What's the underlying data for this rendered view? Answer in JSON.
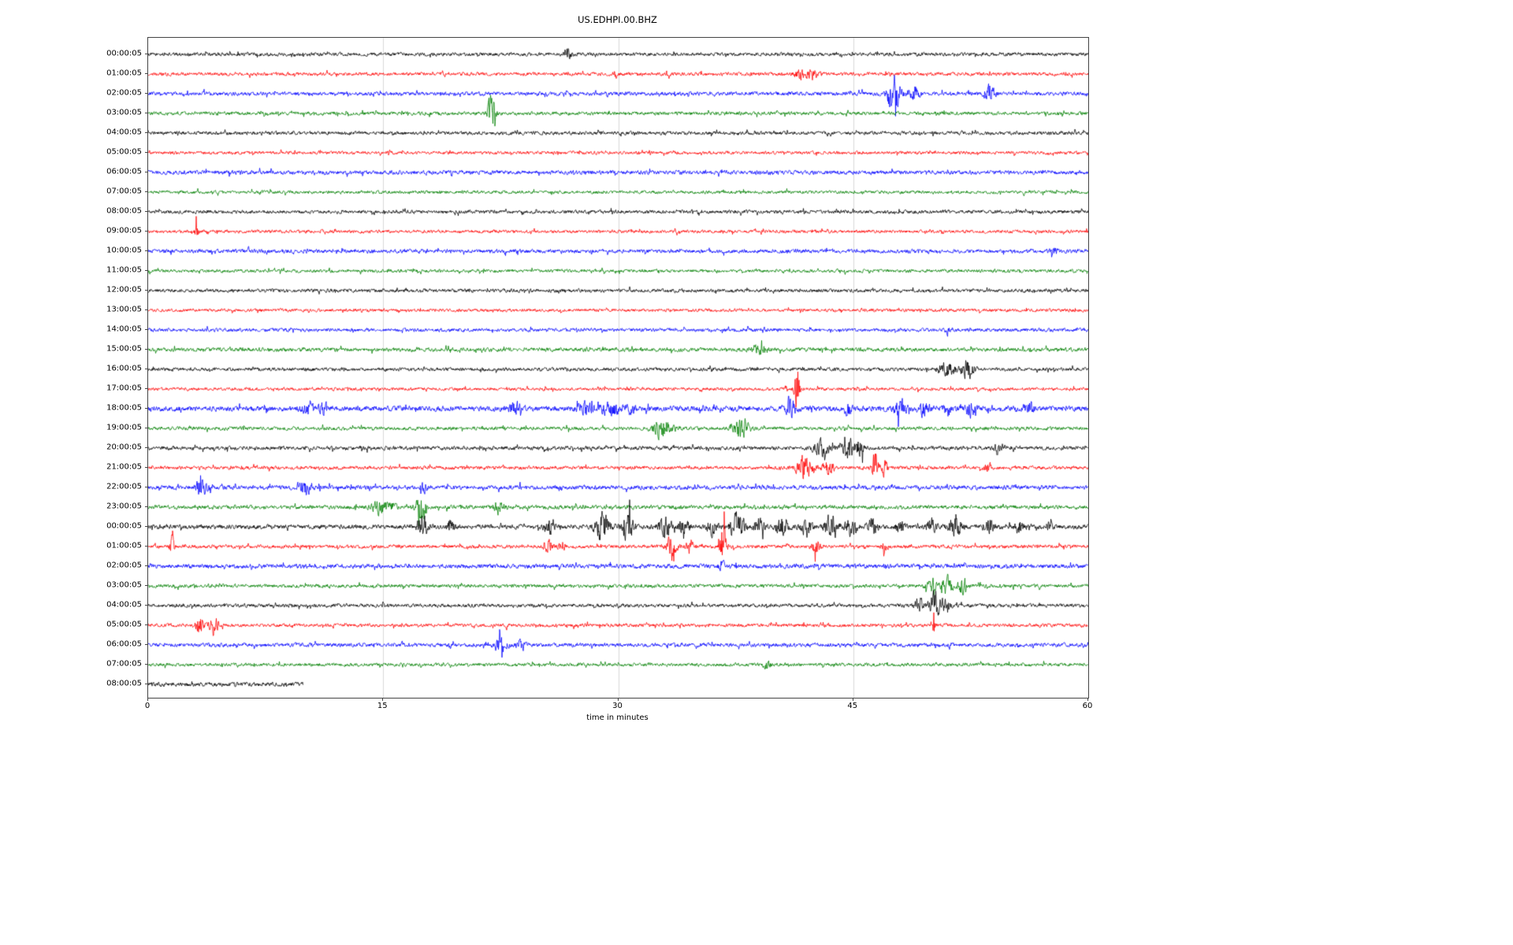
{
  "chart_data": {
    "type": "line",
    "title": "US.EDHPI.00.BHZ",
    "xlabel": "time in minutes",
    "xlim": [
      0,
      60
    ],
    "x_ticks": [
      0,
      15,
      30,
      45,
      60
    ],
    "grid_x": [
      15,
      30,
      45
    ],
    "grid_color": "#d9d9d9",
    "legend": "none",
    "description": "Helicorder day-plot: one horizontal trace per hour, 60 minutes per line, colors cycle black/red/blue/green, event bursts marked per row at minute positions (t) with relative amplitude (amp) and duration in minutes (dur).",
    "color_cycle": [
      "#000000",
      "#ff0000",
      "#0000ff",
      "#008000"
    ],
    "rows": [
      {
        "label": "00:00:05",
        "color": "#000000",
        "noise": 1.0,
        "coverage": 1,
        "events": [
          {
            "t": 26.8,
            "dur": 0.4,
            "amp": 3
          }
        ]
      },
      {
        "label": "01:00:05",
        "color": "#ff0000",
        "noise": 1.0,
        "coverage": 1,
        "events": [
          {
            "t": 29.8,
            "dur": 0.2,
            "amp": 2.5
          },
          {
            "t": 33.2,
            "dur": 0.2,
            "amp": 2
          },
          {
            "t": 41.6,
            "dur": 0.5,
            "amp": 3
          },
          {
            "t": 42.4,
            "dur": 0.5,
            "amp": 3.5
          }
        ]
      },
      {
        "label": "02:00:05",
        "color": "#0000ff",
        "noise": 1.1,
        "coverage": 1,
        "events": [
          {
            "t": 47.6,
            "dur": 0.7,
            "amp": 9
          },
          {
            "t": 48.9,
            "dur": 0.5,
            "amp": 4
          },
          {
            "t": 53.7,
            "dur": 0.5,
            "amp": 5
          }
        ]
      },
      {
        "label": "03:00:05",
        "color": "#008000",
        "noise": 1.0,
        "coverage": 1,
        "events": [
          {
            "t": 21.9,
            "dur": 0.35,
            "amp": 11
          }
        ]
      },
      {
        "label": "04:00:05",
        "color": "#000000",
        "noise": 1.0,
        "coverage": 1,
        "events": []
      },
      {
        "label": "05:00:05",
        "color": "#ff0000",
        "noise": 0.9,
        "coverage": 1,
        "events": []
      },
      {
        "label": "06:00:05",
        "color": "#0000ff",
        "noise": 1.15,
        "coverage": 1,
        "events": []
      },
      {
        "label": "07:00:05",
        "color": "#008000",
        "noise": 0.9,
        "coverage": 1,
        "events": []
      },
      {
        "label": "08:00:05",
        "color": "#000000",
        "noise": 1.0,
        "coverage": 1,
        "events": []
      },
      {
        "label": "09:00:05",
        "color": "#ff0000",
        "noise": 0.9,
        "coverage": 1,
        "events": [
          {
            "t": 3.1,
            "dur": 0.2,
            "amp": 3.5
          }
        ]
      },
      {
        "label": "10:00:05",
        "color": "#0000ff",
        "noise": 1.1,
        "coverage": 1,
        "events": [
          {
            "t": 57.8,
            "dur": 0.3,
            "amp": 2
          }
        ]
      },
      {
        "label": "11:00:05",
        "color": "#008000",
        "noise": 0.9,
        "coverage": 1,
        "events": []
      },
      {
        "label": "12:00:05",
        "color": "#000000",
        "noise": 1.0,
        "coverage": 1,
        "events": []
      },
      {
        "label": "13:00:05",
        "color": "#ff0000",
        "noise": 0.9,
        "coverage": 1,
        "events": []
      },
      {
        "label": "14:00:05",
        "color": "#0000ff",
        "noise": 1.0,
        "coverage": 1,
        "events": [
          {
            "t": 51.0,
            "dur": 0.2,
            "amp": 2.5
          }
        ]
      },
      {
        "label": "15:00:05",
        "color": "#008000",
        "noise": 1.1,
        "coverage": 1,
        "events": [
          {
            "t": 39.0,
            "dur": 0.8,
            "amp": 2
          }
        ]
      },
      {
        "label": "16:00:05",
        "color": "#000000",
        "noise": 1.0,
        "coverage": 1,
        "events": [
          {
            "t": 51.0,
            "dur": 0.8,
            "amp": 4
          },
          {
            "t": 52.3,
            "dur": 0.6,
            "amp": 6
          }
        ]
      },
      {
        "label": "17:00:05",
        "color": "#ff0000",
        "noise": 0.9,
        "coverage": 1,
        "events": [
          {
            "t": 41.4,
            "dur": 0.25,
            "amp": 13
          }
        ]
      },
      {
        "label": "18:00:05",
        "color": "#0000ff",
        "noise": 1.5,
        "coverage": 1,
        "events": [
          {
            "t": 10.3,
            "dur": 0.8,
            "amp": 3
          },
          {
            "t": 11.2,
            "dur": 0.4,
            "amp": 3
          },
          {
            "t": 23.4,
            "dur": 0.6,
            "amp": 3
          },
          {
            "t": 27.9,
            "dur": 0.7,
            "amp": 3.5
          },
          {
            "t": 29.5,
            "dur": 0.8,
            "amp": 4
          },
          {
            "t": 30.8,
            "dur": 0.4,
            "amp": 3
          },
          {
            "t": 41.0,
            "dur": 0.5,
            "amp": 6
          },
          {
            "t": 44.7,
            "dur": 0.4,
            "amp": 3
          },
          {
            "t": 48.0,
            "dur": 0.6,
            "amp": 4
          },
          {
            "t": 49.5,
            "dur": 0.5,
            "amp": 4
          },
          {
            "t": 51.0,
            "dur": 0.4,
            "amp": 3
          },
          {
            "t": 52.5,
            "dur": 0.5,
            "amp": 4
          },
          {
            "t": 56.3,
            "dur": 0.4,
            "amp": 3.5
          }
        ]
      },
      {
        "label": "19:00:05",
        "color": "#008000",
        "noise": 1.0,
        "coverage": 1,
        "events": [
          {
            "t": 32.8,
            "dur": 0.9,
            "amp": 5
          },
          {
            "t": 37.8,
            "dur": 0.8,
            "amp": 6
          }
        ]
      },
      {
        "label": "20:00:05",
        "color": "#000000",
        "noise": 1.1,
        "coverage": 1,
        "events": [
          {
            "t": 43.0,
            "dur": 0.8,
            "amp": 4
          },
          {
            "t": 44.6,
            "dur": 0.6,
            "amp": 7
          },
          {
            "t": 45.4,
            "dur": 0.4,
            "amp": 5
          },
          {
            "t": 54.2,
            "dur": 0.3,
            "amp": 3
          }
        ]
      },
      {
        "label": "21:00:05",
        "color": "#ff0000",
        "noise": 1.0,
        "coverage": 1,
        "events": [
          {
            "t": 41.9,
            "dur": 0.7,
            "amp": 7
          },
          {
            "t": 43.3,
            "dur": 0.6,
            "amp": 5
          },
          {
            "t": 46.4,
            "dur": 0.3,
            "amp": 9
          },
          {
            "t": 47.0,
            "dur": 0.3,
            "amp": 4
          },
          {
            "t": 53.6,
            "dur": 0.3,
            "amp": 3
          }
        ]
      },
      {
        "label": "22:00:05",
        "color": "#0000ff",
        "noise": 1.2,
        "coverage": 1,
        "events": [
          {
            "t": 3.4,
            "dur": 0.6,
            "amp": 4
          },
          {
            "t": 10.0,
            "dur": 0.7,
            "amp": 4
          },
          {
            "t": 17.6,
            "dur": 0.3,
            "amp": 2.5
          }
        ]
      },
      {
        "label": "23:00:05",
        "color": "#008000",
        "noise": 1.1,
        "coverage": 1,
        "events": [
          {
            "t": 14.8,
            "dur": 0.7,
            "amp": 4
          },
          {
            "t": 15.6,
            "dur": 0.3,
            "amp": 3
          },
          {
            "t": 17.4,
            "dur": 0.4,
            "amp": 11
          },
          {
            "t": 22.4,
            "dur": 0.5,
            "amp": 3.5
          }
        ]
      },
      {
        "label": "00:00:05",
        "color": "#000000",
        "noise": 1.3,
        "coverage": 1,
        "events": [
          {
            "t": 17.5,
            "dur": 0.5,
            "amp": 6
          },
          {
            "t": 19.3,
            "dur": 0.4,
            "amp": 3
          },
          {
            "t": 25.6,
            "dur": 0.4,
            "amp": 4
          },
          {
            "t": 29.0,
            "dur": 0.7,
            "amp": 8
          },
          {
            "t": 30.6,
            "dur": 0.6,
            "amp": 7
          },
          {
            "t": 33.0,
            "dur": 0.6,
            "amp": 5
          },
          {
            "t": 34.2,
            "dur": 0.5,
            "amp": 4
          },
          {
            "t": 36.0,
            "dur": 0.5,
            "amp": 4
          },
          {
            "t": 37.6,
            "dur": 0.6,
            "amp": 10
          },
          {
            "t": 39.0,
            "dur": 0.5,
            "amp": 5
          },
          {
            "t": 40.5,
            "dur": 0.6,
            "amp": 6
          },
          {
            "t": 42.0,
            "dur": 0.5,
            "amp": 5
          },
          {
            "t": 43.6,
            "dur": 0.6,
            "amp": 8
          },
          {
            "t": 44.9,
            "dur": 0.5,
            "amp": 7
          },
          {
            "t": 46.2,
            "dur": 0.5,
            "amp": 5
          },
          {
            "t": 48.0,
            "dur": 0.4,
            "amp": 4
          },
          {
            "t": 50.0,
            "dur": 0.5,
            "amp": 4
          },
          {
            "t": 51.5,
            "dur": 0.6,
            "amp": 5
          },
          {
            "t": 53.6,
            "dur": 0.5,
            "amp": 4
          },
          {
            "t": 55.6,
            "dur": 0.4,
            "amp": 4
          },
          {
            "t": 57.5,
            "dur": 0.3,
            "amp": 3
          }
        ]
      },
      {
        "label": "01:00:05",
        "color": "#ff0000",
        "noise": 1.0,
        "coverage": 1,
        "events": [
          {
            "t": 1.5,
            "dur": 0.2,
            "amp": 9
          },
          {
            "t": 25.5,
            "dur": 0.4,
            "amp": 4
          },
          {
            "t": 26.4,
            "dur": 0.3,
            "amp": 3
          },
          {
            "t": 33.4,
            "dur": 0.5,
            "amp": 5
          },
          {
            "t": 34.6,
            "dur": 0.4,
            "amp": 4
          },
          {
            "t": 36.7,
            "dur": 0.3,
            "amp": 13
          },
          {
            "t": 42.6,
            "dur": 0.4,
            "amp": 4
          },
          {
            "t": 47.0,
            "dur": 0.3,
            "amp": 2.5
          }
        ]
      },
      {
        "label": "02:00:05",
        "color": "#0000ff",
        "noise": 1.25,
        "coverage": 1,
        "events": [
          {
            "t": 36.6,
            "dur": 0.3,
            "amp": 2.5
          }
        ]
      },
      {
        "label": "03:00:05",
        "color": "#008000",
        "noise": 1.0,
        "coverage": 1,
        "events": [
          {
            "t": 50.0,
            "dur": 0.5,
            "amp": 4
          },
          {
            "t": 51.0,
            "dur": 0.5,
            "amp": 5
          },
          {
            "t": 52.0,
            "dur": 0.5,
            "amp": 4
          }
        ]
      },
      {
        "label": "04:00:05",
        "color": "#000000",
        "noise": 1.0,
        "coverage": 1,
        "events": [
          {
            "t": 49.2,
            "dur": 0.4,
            "amp": 4
          },
          {
            "t": 50.2,
            "dur": 0.5,
            "amp": 8
          },
          {
            "t": 50.9,
            "dur": 0.4,
            "amp": 5
          }
        ]
      },
      {
        "label": "05:00:05",
        "color": "#ff0000",
        "noise": 0.95,
        "coverage": 1,
        "events": [
          {
            "t": 3.3,
            "dur": 0.4,
            "amp": 5
          },
          {
            "t": 4.2,
            "dur": 0.4,
            "amp": 5
          },
          {
            "t": 50.1,
            "dur": 0.15,
            "amp": 11
          }
        ]
      },
      {
        "label": "06:00:05",
        "color": "#0000ff",
        "noise": 1.1,
        "coverage": 1,
        "events": [
          {
            "t": 22.5,
            "dur": 0.6,
            "amp": 4
          },
          {
            "t": 23.8,
            "dur": 0.4,
            "amp": 3
          }
        ]
      },
      {
        "label": "07:00:05",
        "color": "#008000",
        "noise": 0.95,
        "coverage": 1,
        "events": [
          {
            "t": 39.5,
            "dur": 0.4,
            "amp": 2
          }
        ]
      },
      {
        "label": "08:00:05",
        "color": "#000000",
        "noise": 1.2,
        "coverage": 0.165,
        "events": []
      }
    ]
  }
}
